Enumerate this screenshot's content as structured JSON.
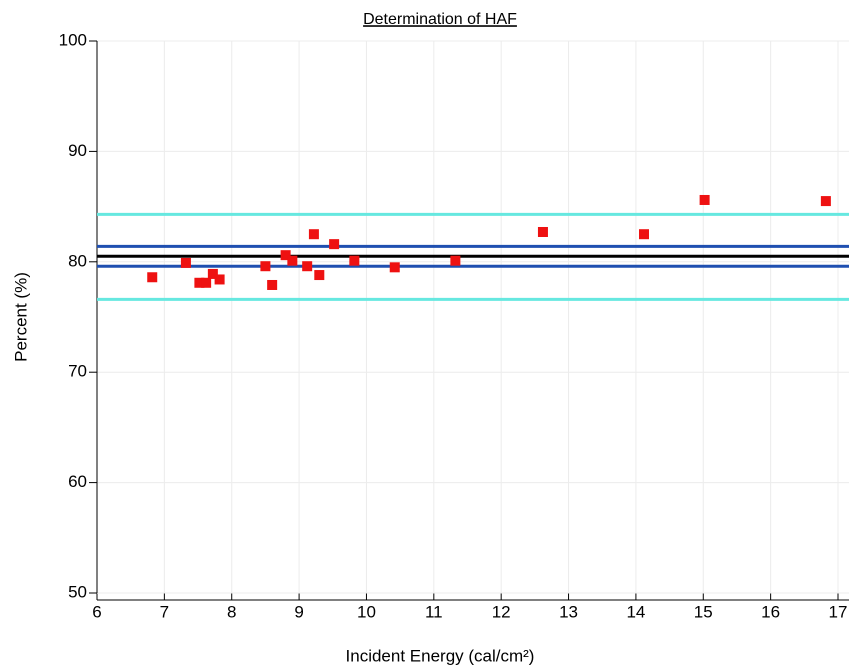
{
  "chart_data": {
    "type": "scatter",
    "title": "Determination of HAF",
    "xlabel": "Incident Energy (cal/cm²)",
    "ylabel": "Percent (%)",
    "xlim": [
      6,
      17
    ],
    "xticks": [
      6,
      7,
      8,
      9,
      10,
      11,
      12,
      13,
      14,
      15,
      16,
      17
    ],
    "ylim": [
      50,
      100
    ],
    "yticks": [
      50,
      60,
      70,
      80,
      90,
      100
    ],
    "grid": true,
    "series": [
      {
        "color": "#ee1111",
        "x": [
          6.82,
          7.32,
          7.52,
          7.62,
          7.72,
          7.82,
          8.5,
          8.6,
          8.8,
          8.9,
          9.12,
          9.22,
          9.3,
          9.52,
          9.82,
          10.42,
          11.32,
          12.62,
          14.12,
          15.02,
          16.82
        ],
        "values": [
          78.6,
          79.9,
          78.1,
          78.1,
          78.9,
          78.4,
          79.6,
          77.9,
          80.6,
          80.1,
          79.6,
          82.5,
          78.8,
          81.6,
          80.1,
          79.5,
          80.1,
          82.7,
          82.5,
          85.6,
          85.5
        ]
      }
    ],
    "reference_lines": [
      {
        "value": 84.3,
        "color": "#66e8e0"
      },
      {
        "value": 81.4,
        "color": "#1f4fb0"
      },
      {
        "value": 80.5,
        "color": "#000000"
      },
      {
        "value": 79.6,
        "color": "#1f4fb0"
      },
      {
        "value": 76.6,
        "color": "#66e8e0"
      }
    ]
  }
}
